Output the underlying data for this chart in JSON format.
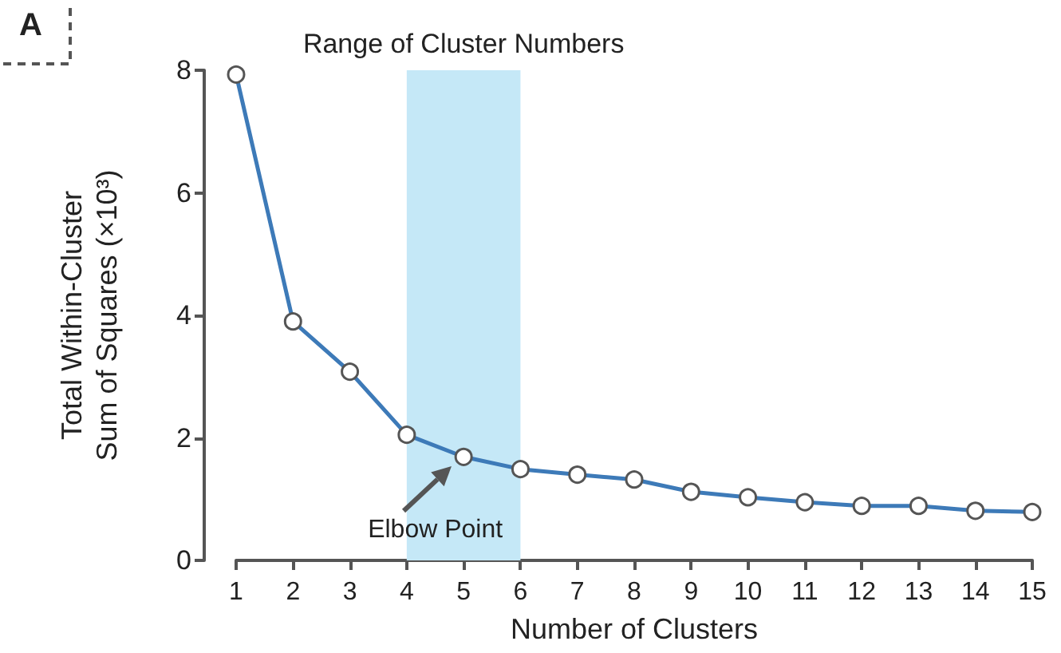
{
  "chart_data": {
    "type": "line",
    "xlabel": "Number of Clusters",
    "ylabel": "Total Within-Cluster\nSum of Squares (×10³)",
    "x": [
      1,
      2,
      3,
      4,
      5,
      6,
      7,
      8,
      9,
      10,
      11,
      12,
      13,
      14,
      15
    ],
    "series": [
      {
        "color": "#3d7ab8",
        "values": [
          7.93,
          3.9,
          3.08,
          2.05,
          1.69,
          1.49,
          1.4,
          1.32,
          1.12,
          1.03,
          0.95,
          0.89,
          0.89,
          0.81,
          0.79
        ]
      }
    ],
    "xlim": [
      1,
      15
    ],
    "xticks": [
      1,
      2,
      3,
      4,
      5,
      6,
      7,
      8,
      9,
      10,
      11,
      12,
      13,
      14,
      15
    ],
    "ylim": [
      0,
      8
    ],
    "yticks": [
      0,
      2,
      4,
      6,
      8
    ],
    "marker": "circle",
    "line_style": "solid",
    "bands": [
      {
        "axis": "x",
        "from": 4,
        "to": 6,
        "label": "Range of Cluster Numbers",
        "color": "#c5e8f7"
      }
    ],
    "annotations": [
      "A",
      {
        "text": "Elbow Point",
        "x": 5,
        "y": 1.69
      }
    ]
  }
}
